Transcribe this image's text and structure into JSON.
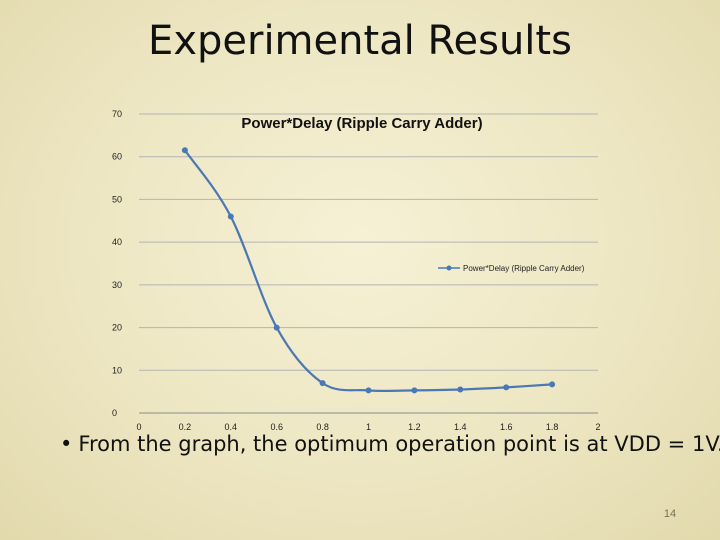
{
  "slide": {
    "title": "Experimental Results",
    "bullet": "From the graph, the optimum operation point is at VDD = 1V.",
    "page_number": "14"
  },
  "colors": {
    "series": "#4a78b5",
    "grid": "#b3b3b3",
    "axis": "#8c8c8c"
  },
  "chart_data": {
    "type": "line",
    "title": "Power*Delay (Ripple Carry Adder)",
    "xlabel": "",
    "ylabel": "",
    "xlim": [
      0,
      2
    ],
    "ylim": [
      0,
      70
    ],
    "x_ticks": [
      "0",
      "0.2",
      "0.4",
      "0.6",
      "0.8",
      "1",
      "1.2",
      "1.4",
      "1.6",
      "1.8",
      "2"
    ],
    "y_ticks": [
      "0",
      "10",
      "20",
      "30",
      "40",
      "50",
      "60",
      "70"
    ],
    "grid": "horizontal",
    "smooth": true,
    "legend_position": "right",
    "series": [
      {
        "name": "Power*Delay (Ripple Carry Adder)",
        "x": [
          0.2,
          0.4,
          0.6,
          0.8,
          1.0,
          1.2,
          1.4,
          1.6,
          1.8
        ],
        "y": [
          61.5,
          46,
          20,
          7,
          5.3,
          5.3,
          5.5,
          6,
          6.7
        ]
      }
    ]
  }
}
